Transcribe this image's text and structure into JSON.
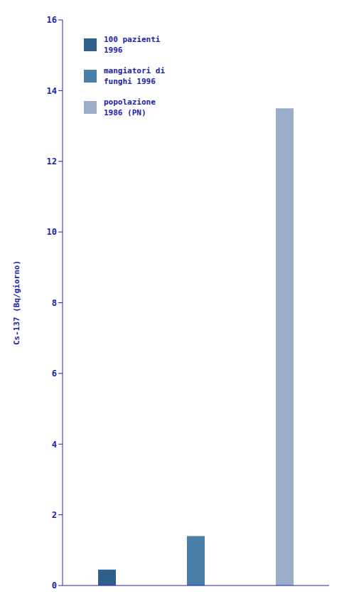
{
  "chart_data": {
    "type": "bar",
    "categories": [
      "100 pazienti\n1996",
      "mangiatori di\nfunghi 1996",
      "popolazione\n1986 (PN)"
    ],
    "values": [
      0.45,
      1.4,
      13.5
    ],
    "colors": [
      "#2e5f8a",
      "#4a7faa",
      "#9aacc8"
    ],
    "ylabel": "Cs-137 (Bq/giorno)",
    "ylim": [
      0,
      16
    ],
    "yticks": [
      0,
      2,
      4,
      6,
      8,
      10,
      12,
      14,
      16
    ],
    "grid": false,
    "legend": "upper left",
    "tick_labels": "y"
  }
}
